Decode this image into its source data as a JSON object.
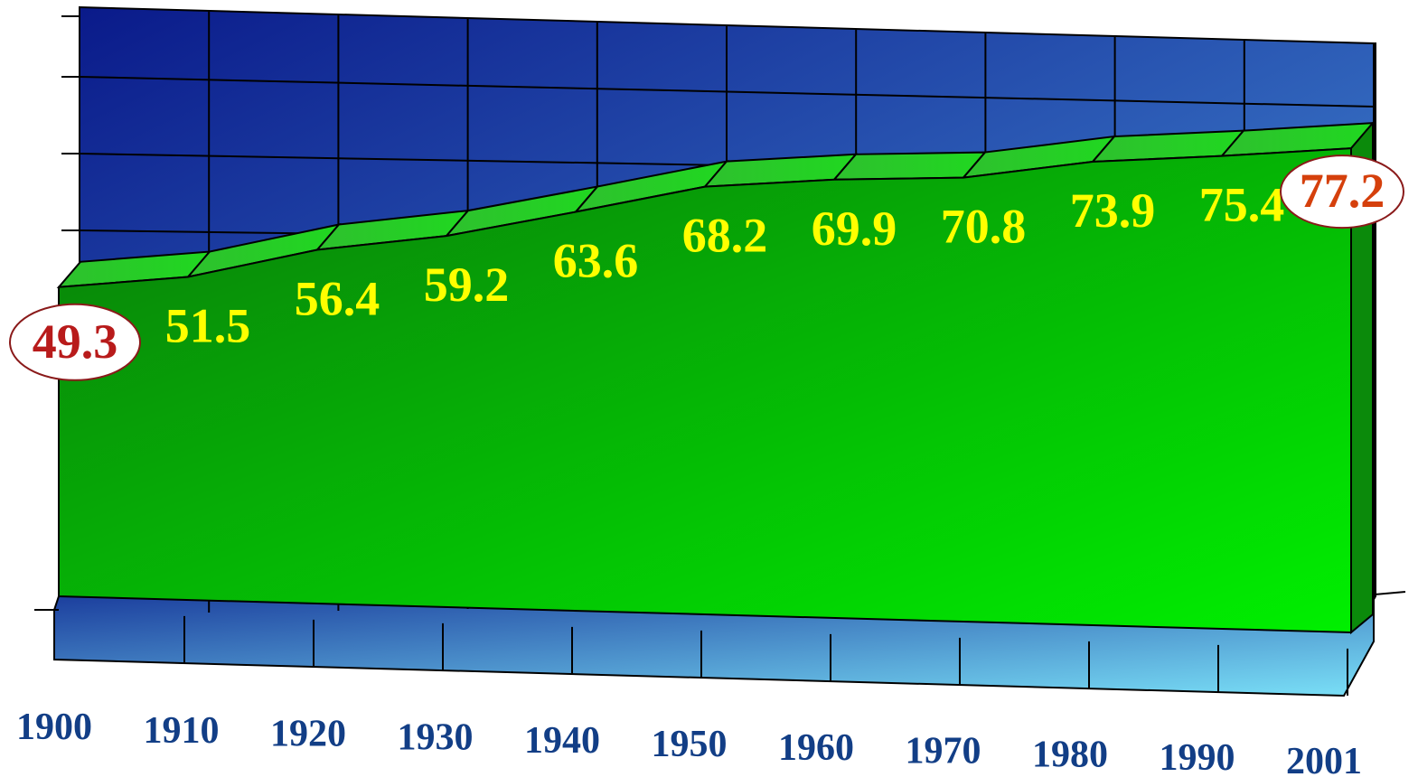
{
  "chart_data": {
    "type": "area",
    "categories": [
      "1900",
      "1910",
      "1920",
      "1930",
      "1940",
      "1950",
      "1960",
      "1970",
      "1980",
      "1990",
      "2001"
    ],
    "values": [
      49.3,
      51.5,
      56.4,
      59.2,
      63.6,
      68.2,
      69.9,
      70.8,
      73.9,
      75.4,
      77.2
    ],
    "data_labels": [
      "49.3",
      "51.5",
      "56.4",
      "59.2",
      "63.6",
      "68.2",
      "69.9",
      "70.8",
      "73.9",
      "75.4",
      "77.2"
    ],
    "highlighted": [
      "49.3",
      "77.2"
    ],
    "ylim": [
      0,
      85
    ],
    "grid": true,
    "style": "3d",
    "colors": {
      "area": "#00c800",
      "area_dark": "#0a7a0a",
      "area_top": "#22b822",
      "back_wall_dark": "#0a1a8a",
      "back_wall_light": "#4d9be0",
      "floor_dark": "#1c3f9e",
      "floor_light": "#7ae0f7",
      "label": "#ffff00",
      "highlight_start": "#b81b1b",
      "highlight_end": "#d5400c",
      "tick_label": "#123e86"
    }
  }
}
